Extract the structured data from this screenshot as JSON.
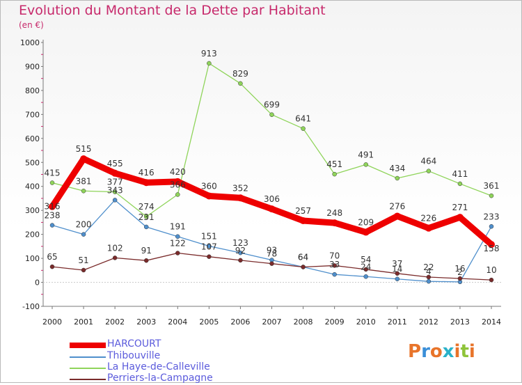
{
  "title": "Evolution du Montant de la Dette par Habitant",
  "unit": "(en €)",
  "logo": {
    "text": "Proxiti",
    "colors": [
      "#e8742a",
      "#3a8fd8",
      "#e8742a",
      "#2bb2c9",
      "#e8742a",
      "#8fc43a",
      "#e8742a"
    ]
  },
  "chart_data": {
    "type": "line",
    "title": "Evolution du Montant de la Dette par Habitant",
    "ylabel": "(en €)",
    "x": [
      "2000",
      "2001",
      "2002",
      "2003",
      "2004",
      "2005",
      "2006",
      "2007",
      "2008",
      "2009",
      "2010",
      "2011",
      "2012",
      "2013",
      "2014"
    ],
    "ylim": [
      -100,
      1000
    ],
    "yticks": [
      -100,
      0,
      100,
      200,
      300,
      400,
      500,
      600,
      700,
      800,
      900,
      1000
    ],
    "grid": false,
    "legend_position": "bottom-left",
    "series": [
      {
        "name": "HARCOURT",
        "color": "#ee0000",
        "values": [
          316,
          515,
          455,
          416,
          420,
          360,
          352,
          306,
          257,
          248,
          209,
          276,
          226,
          271,
          158
        ],
        "labels": [
          "316",
          "515",
          "455",
          "416",
          "420",
          "360",
          "352",
          "306",
          "257",
          "248",
          "209",
          "276",
          "226",
          "271",
          "158"
        ],
        "dy": [
          0,
          -14,
          -14,
          -14,
          -14,
          -14,
          -14,
          -14,
          -14,
          -14,
          -14,
          -14,
          -14,
          -14,
          6
        ]
      },
      {
        "name": "Thibouville",
        "color": "#4f8fcc",
        "values": [
          238,
          200,
          343,
          231,
          191,
          151,
          123,
          93,
          64,
          33,
          24,
          14,
          4,
          2,
          233
        ],
        "labels": [
          "238",
          "200",
          "343",
          "231",
          "191",
          "151",
          "123",
          "93",
          "64",
          "33",
          "24",
          "14",
          "4",
          "2",
          "233"
        ],
        "dy": [
          -14,
          -14,
          -14,
          -14,
          -14,
          -14,
          -14,
          -14,
          -14,
          -14,
          -14,
          -14,
          -14,
          -14,
          -14
        ]
      },
      {
        "name": "La Haye-de-Calleville",
        "color": "#8fd45a",
        "values": [
          415,
          381,
          377,
          274,
          366,
          913,
          829,
          699,
          641,
          451,
          491,
          434,
          464,
          411,
          361
        ],
        "labels": [
          "415",
          "381",
          "377",
          "274",
          "366",
          "913",
          "829",
          "699",
          "641",
          "451",
          "491",
          "434",
          "464",
          "411",
          "361"
        ],
        "dy": [
          -14,
          -14,
          -14,
          -14,
          -14,
          -14,
          -14,
          -14,
          -14,
          -14,
          -14,
          -14,
          -14,
          -14,
          -14
        ]
      },
      {
        "name": "Perriers-la-Campagne",
        "color": "#7a2b2b",
        "values": [
          65,
          51,
          102,
          91,
          122,
          107,
          92,
          78,
          64,
          70,
          54,
          37,
          22,
          16,
          10
        ],
        "labels": [
          "65",
          "51",
          "102",
          "91",
          "122",
          "107",
          "92",
          "78",
          "64",
          "70",
          "54",
          "37",
          "22",
          "16",
          "10"
        ],
        "dy": [
          -14,
          -14,
          -14,
          -14,
          -14,
          -14,
          -14,
          -14,
          -14,
          -14,
          -14,
          -14,
          -14,
          -14,
          -14
        ]
      }
    ]
  }
}
